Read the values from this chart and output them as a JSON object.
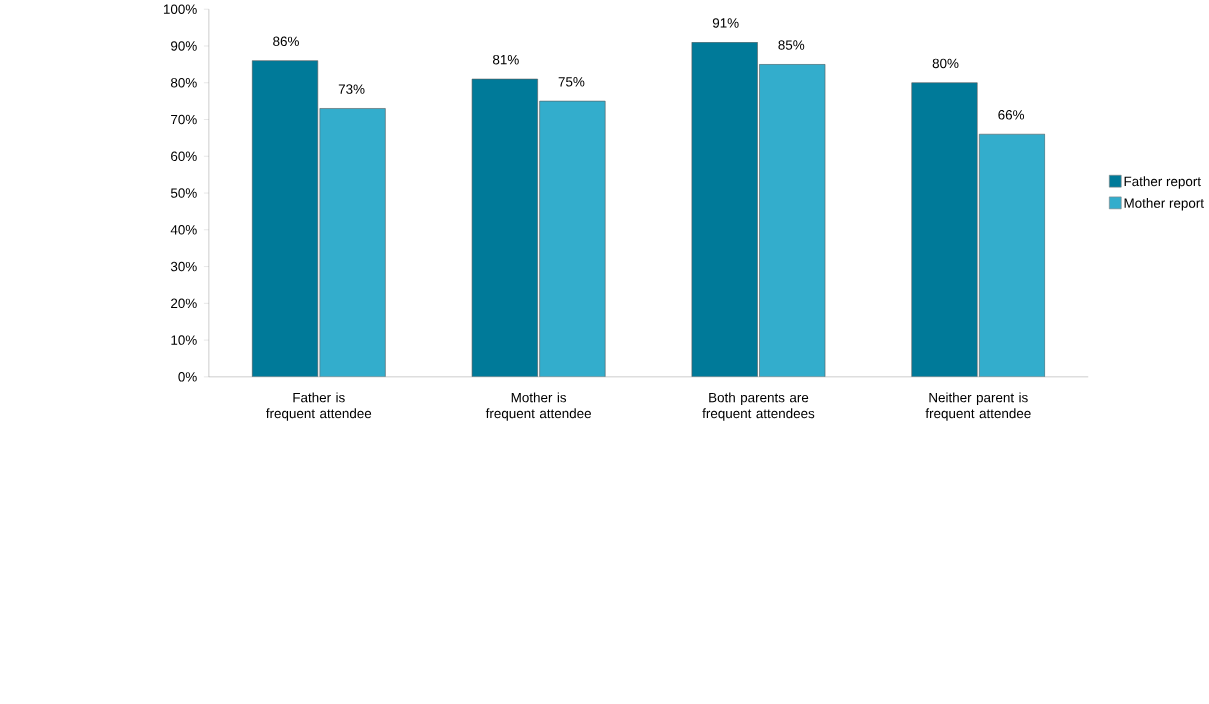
{
  "chart_data": {
    "type": "bar",
    "categories": [
      "Father is frequent attendee",
      "Mother is frequent attendee",
      "Both parents are frequent attendees",
      "Neither parent is frequent attendee"
    ],
    "series": [
      {
        "name": "Father report",
        "color": "#007a99",
        "values": [
          86,
          81,
          91,
          80
        ],
        "value_labels": [
          "86%",
          "81%",
          "91%",
          "80%"
        ]
      },
      {
        "name": "Mother report",
        "color": "#33adcc",
        "values": [
          73,
          75,
          85,
          66
        ],
        "value_labels": [
          "73%",
          "75%",
          "85%",
          "66%"
        ]
      }
    ],
    "ylim": [
      0,
      100
    ],
    "yticks": [
      {
        "value": 0,
        "label": "0%"
      },
      {
        "value": 10,
        "label": "10%"
      },
      {
        "value": 20,
        "label": "20%"
      },
      {
        "value": 30,
        "label": "30%"
      },
      {
        "value": 40,
        "label": "40%"
      },
      {
        "value": 50,
        "label": "50%"
      },
      {
        "value": 60,
        "label": "60%"
      },
      {
        "value": 70,
        "label": "70%"
      },
      {
        "value": 80,
        "label": "80%"
      },
      {
        "value": 90,
        "label": "90%"
      },
      {
        "value": 100,
        "label": "100%"
      }
    ],
    "grid": false,
    "legend": "right"
  }
}
